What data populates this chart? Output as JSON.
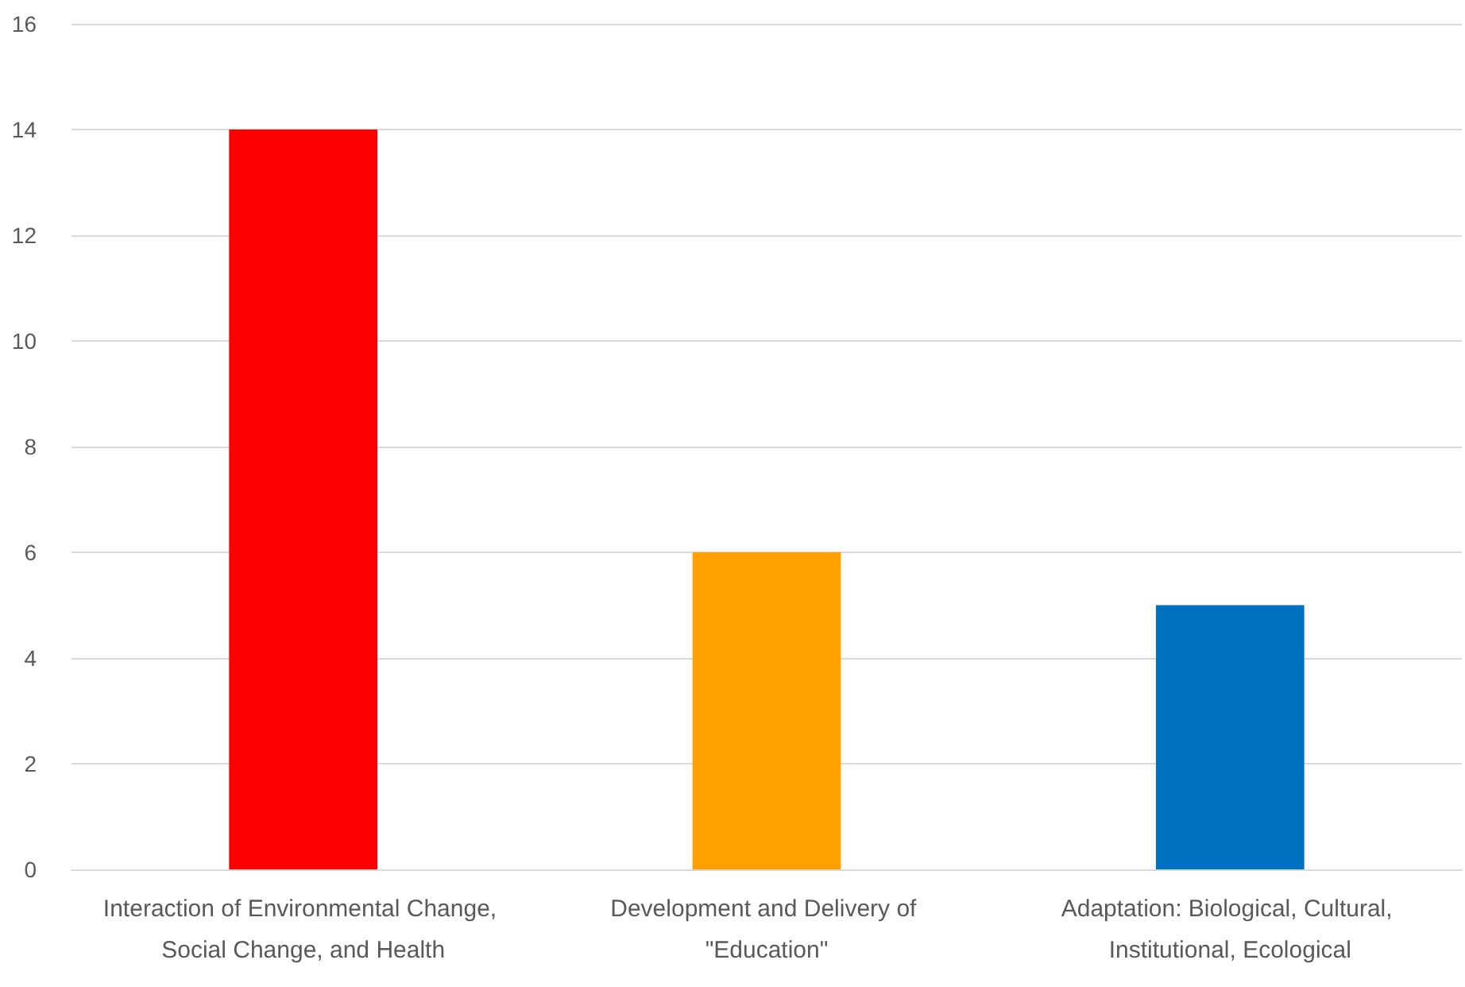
{
  "chart_data": {
    "type": "bar",
    "categories": [
      "Interaction of Environmental Change, Social Change, and Health",
      "Development and Delivery of \"Education\"",
      "Adaptation: Biological, Cultural, Institutional, Ecological"
    ],
    "values": [
      14,
      6,
      5
    ],
    "colors": [
      "#ff0000",
      "#ffa000",
      "#0070c0"
    ],
    "ylim": [
      0,
      16
    ],
    "yticks": [
      0,
      2,
      4,
      6,
      8,
      10,
      12,
      14,
      16
    ],
    "grid": "y"
  }
}
